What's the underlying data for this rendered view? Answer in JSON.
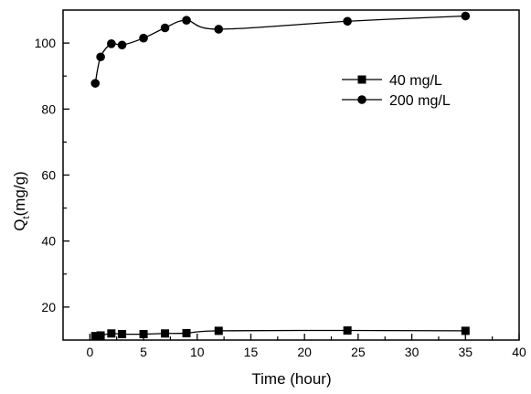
{
  "chart_data": {
    "type": "line",
    "xlabel": "Time (hour)",
    "ylabel_main": "Q",
    "ylabel_sub": "t",
    "ylabel_rest": "(mg/g)",
    "xlim": [
      -2.5,
      40
    ],
    "ylim": [
      10,
      110
    ],
    "xticks": [
      0,
      5,
      10,
      15,
      20,
      25,
      30,
      35,
      40
    ],
    "yticks": [
      20,
      40,
      60,
      80,
      100
    ],
    "x_minor_ticks": [
      2.5,
      7.5,
      12.5,
      17.5,
      22.5,
      27.5,
      32.5,
      37.5
    ],
    "y_minor_ticks": [
      30,
      50,
      70,
      90
    ],
    "grid": false,
    "legend_position": "top-right",
    "series": [
      {
        "name": "40 mg/L",
        "marker": "square",
        "x": [
          0.5,
          1,
          2,
          3,
          5,
          7,
          9,
          12,
          24,
          35
        ],
        "y": [
          11.2,
          11.4,
          12.0,
          11.8,
          11.8,
          12.0,
          12.1,
          12.8,
          12.9,
          12.8
        ]
      },
      {
        "name": "200 mg/L",
        "marker": "circle",
        "x": [
          0.5,
          1,
          2,
          3,
          5,
          7,
          9,
          12,
          24,
          35
        ],
        "y": [
          87.8,
          95.8,
          99.8,
          99.4,
          101.5,
          104.6,
          106.9,
          104.2,
          106.6,
          108.2
        ]
      }
    ]
  }
}
